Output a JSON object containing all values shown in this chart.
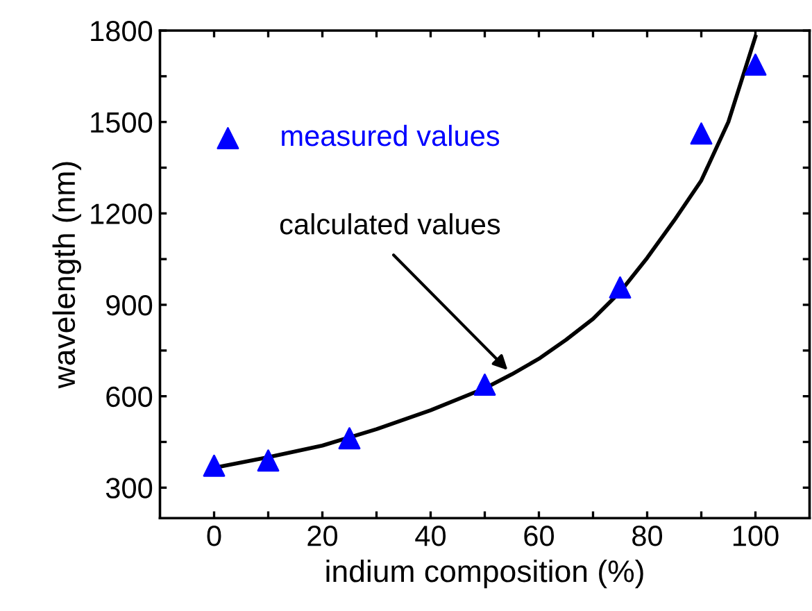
{
  "chart_data": {
    "type": "scatter",
    "xlabel": "indium composition (%)",
    "ylabel": "wavelength (nm)",
    "series": [
      {
        "name": "measured values",
        "color": "#0000ff",
        "marker": "triangle",
        "x": [
          0,
          10,
          25,
          50,
          75,
          90,
          100
        ],
        "values": [
          372,
          389,
          462,
          638,
          957,
          1462,
          1688
        ]
      },
      {
        "type": "line",
        "color": "#000000",
        "line_style": "solid",
        "x": [
          0,
          10,
          20,
          30,
          40,
          50,
          55,
          60,
          65,
          70,
          75,
          80,
          85,
          90,
          95,
          100
        ],
        "values": [
          365,
          400,
          438,
          492,
          554,
          626,
          672,
          723,
          785,
          854,
          942,
          1054,
          1177,
          1308,
          1500,
          1780
        ]
      }
    ],
    "annotations": [
      {
        "text": "calculated values",
        "x": 55,
        "y": 672
      }
    ],
    "xlim": [
      -10,
      110
    ],
    "ylim": [
      200,
      1800
    ],
    "xticks": [
      0,
      {
        "value": 10,
        "label": null
      },
      20,
      {
        "value": 30,
        "label": null
      },
      40,
      {
        "value": 50,
        "label": null
      },
      60,
      {
        "value": 70,
        "label": null
      },
      80,
      {
        "value": 90,
        "label": null
      },
      100
    ],
    "yticks": [
      300,
      {
        "value": 450,
        "label": null
      },
      600,
      {
        "value": 750,
        "label": null
      },
      900,
      {
        "value": 1050,
        "label": null
      },
      1200,
      {
        "value": 1350,
        "label": null
      },
      1500,
      {
        "value": 1650,
        "label": null
      },
      1800
    ],
    "grid": false,
    "legend": "top left"
  }
}
